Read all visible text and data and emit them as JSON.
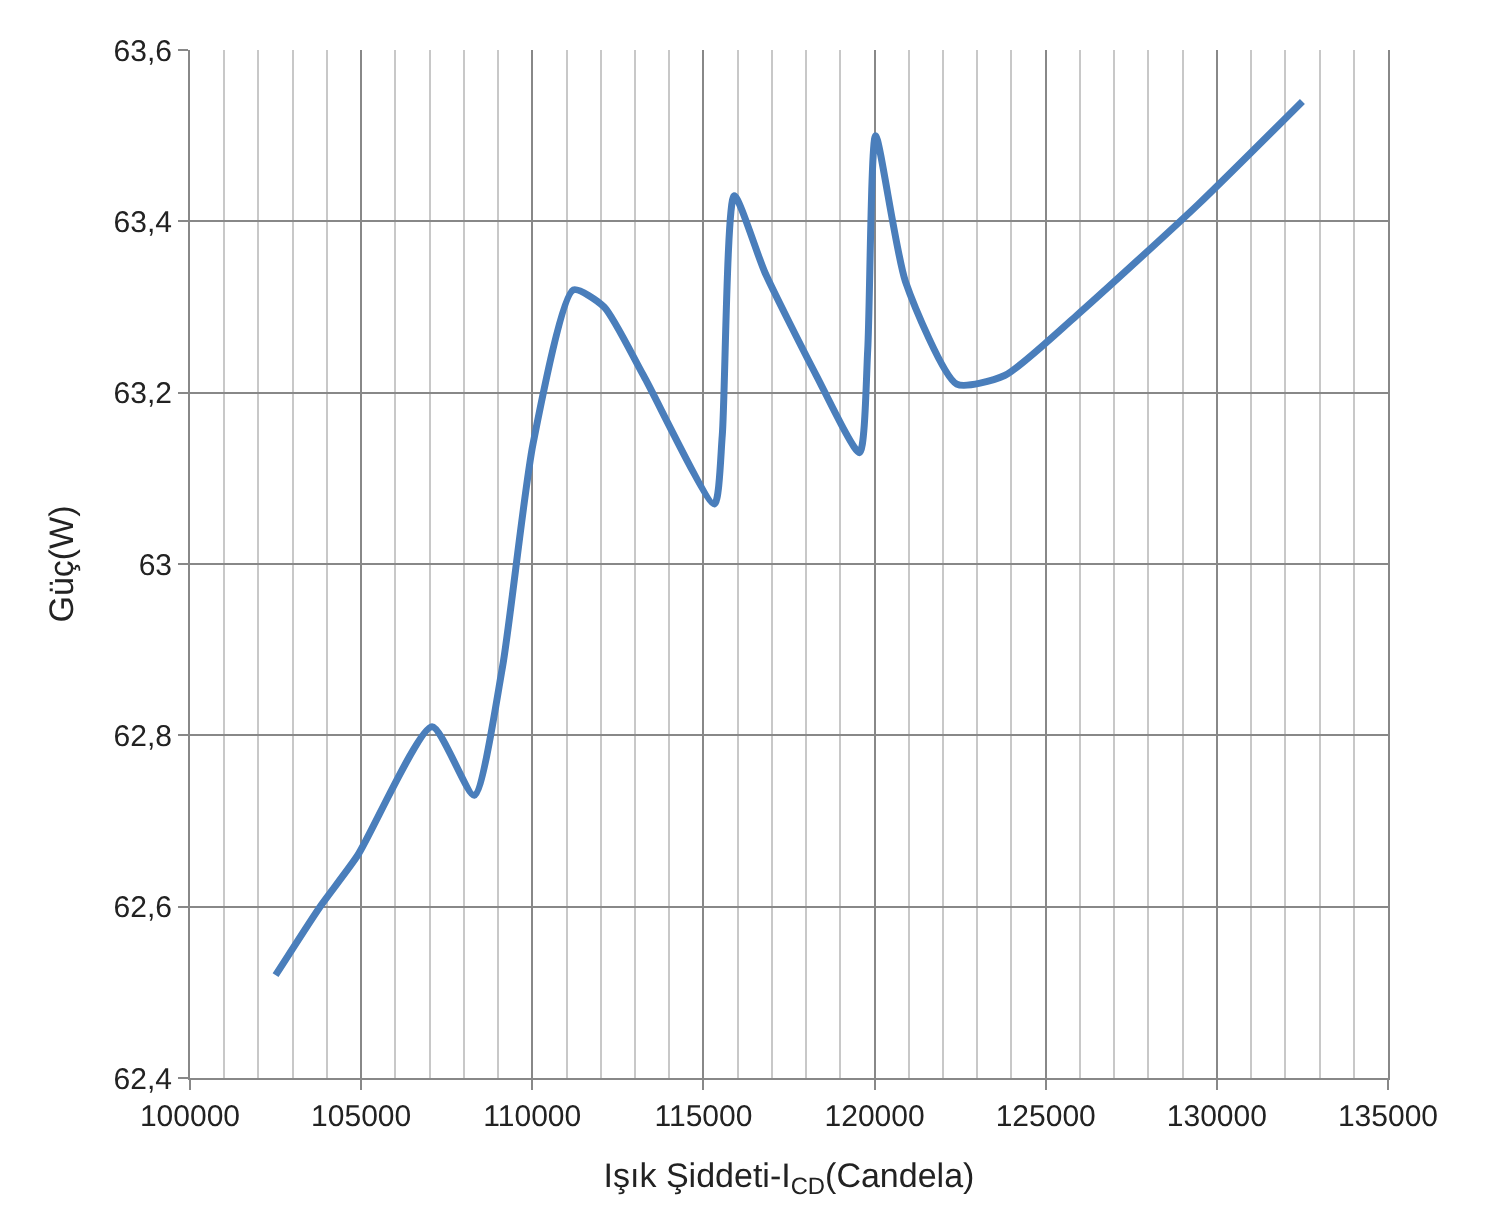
{
  "chart_data": {
    "type": "line",
    "xlabel": "Işık Şiddeti-I$_{CD}$(Candela)",
    "ylabel": "Güç(W)",
    "x": [
      102500,
      103800,
      104900,
      107070,
      108300,
      109130,
      110020,
      111200,
      112100,
      113250,
      115320,
      115550,
      115900,
      116800,
      118300,
      119560,
      119800,
      120030,
      120900,
      122400,
      123800,
      125900,
      129460,
      132500
    ],
    "series": [
      {
        "color": "#4a7ebb",
        "values": [
          62.52,
          62.6,
          62.66,
          62.81,
          62.73,
          62.88,
          63.14,
          63.32,
          63.3,
          63.22,
          63.07,
          63.15,
          63.43,
          63.34,
          63.22,
          63.13,
          63.25,
          63.5,
          63.33,
          63.21,
          63.22,
          63.29,
          63.42,
          63.54
        ]
      }
    ],
    "xlim": [
      100000,
      135000
    ],
    "xticks": [
      100000,
      105000,
      110000,
      115000,
      120000,
      125000,
      130000,
      135000
    ],
    "ylim": [
      62.4,
      63.6
    ],
    "yticks": [
      {
        "value": 62.4,
        "label": "62,4"
      },
      {
        "value": 62.6,
        "label": "62,6"
      },
      {
        "value": 62.8,
        "label": "62,8"
      },
      63,
      {
        "value": 63.2,
        "label": "63,2"
      },
      {
        "value": 63.4,
        "label": "63,4"
      },
      {
        "value": 63.6,
        "label": "63,6"
      }
    ],
    "grid": true,
    "legend": false,
    "marker": "none",
    "line_style": "solid"
  }
}
